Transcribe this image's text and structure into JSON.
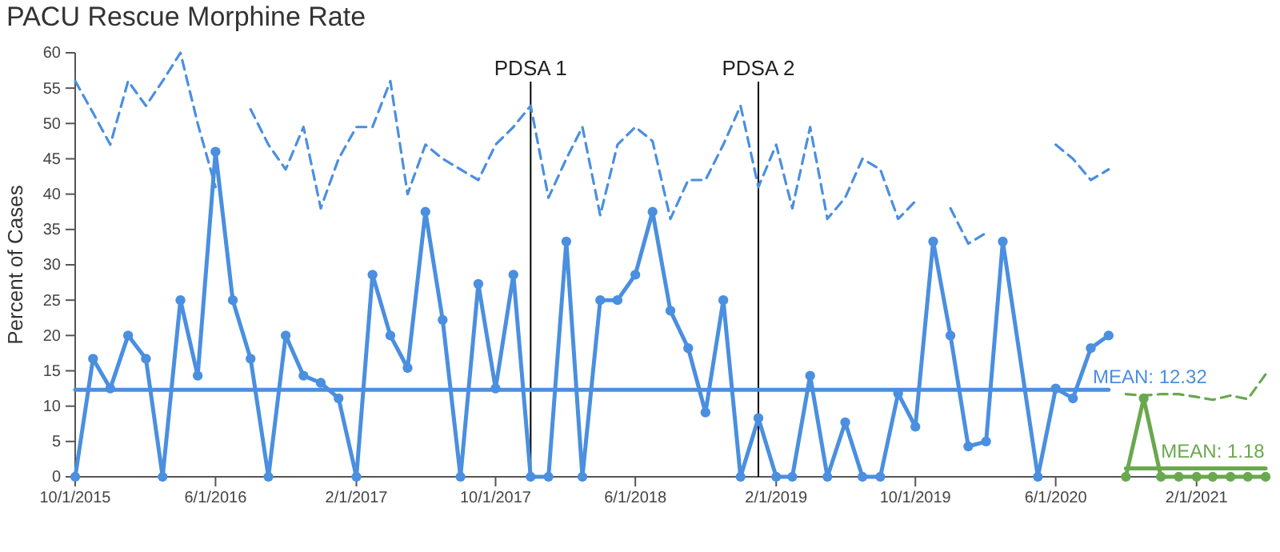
{
  "chart_data": {
    "type": "line",
    "title": "PACU Rescue Morphine Rate",
    "ylabel": "Percent of Cases",
    "xlim": [
      "2015-10-01",
      "2021-06-01"
    ],
    "xticks": [
      {
        "value": "2015-10-01",
        "label": "10/1/2015"
      },
      {
        "value": "2016-06-01",
        "label": "6/1/2016"
      },
      {
        "value": "2017-02-01",
        "label": "2/1/2017"
      },
      {
        "value": "2017-10-01",
        "label": "10/1/2017"
      },
      {
        "value": "2018-06-01",
        "label": "6/1/2018"
      },
      {
        "value": "2019-02-01",
        "label": "2/1/2019"
      },
      {
        "value": "2019-10-01",
        "label": "10/1/2019"
      },
      {
        "value": "2020-06-01",
        "label": "6/1/2020"
      },
      {
        "value": "2021-02-01",
        "label": "2/1/2021"
      }
    ],
    "ylim": [
      0,
      60
    ],
    "yticks": [
      0,
      5,
      10,
      15,
      20,
      25,
      30,
      35,
      40,
      45,
      50,
      55,
      60
    ],
    "grid": false,
    "ref_lines": [
      {
        "axis": "x",
        "value": "2017-12-01",
        "label": "PDSA 1",
        "color": "#000000"
      },
      {
        "axis": "x",
        "value": "2019-01-01",
        "label": "PDSA 2",
        "color": "#000000"
      }
    ],
    "series": [
      {
        "type": "line",
        "color": "#4a8fe0",
        "marker": "none",
        "line_style": "dashed",
        "x": [
          "2015-10",
          "2015-11",
          "2015-12",
          "2016-01",
          "2016-02",
          "2016-03",
          "2016-04",
          "2016-05",
          "2016-06",
          "2016-07",
          "2016-08",
          "2016-09",
          "2016-10",
          "2016-11",
          "2016-12",
          "2017-01",
          "2017-02",
          "2017-03",
          "2017-04",
          "2017-05",
          "2017-06",
          "2017-07",
          "2017-08",
          "2017-09",
          "2017-10",
          "2017-11",
          "2017-12",
          "2018-01",
          "2018-02",
          "2018-03",
          "2018-04",
          "2018-05",
          "2018-06",
          "2018-07",
          "2018-08",
          "2018-09",
          "2018-10",
          "2018-11",
          "2018-12",
          "2019-01",
          "2019-02",
          "2019-03",
          "2019-04",
          "2019-05",
          "2019-06",
          "2019-07",
          "2019-08",
          "2019-09",
          "2019-10",
          "2019-11",
          "2019-12",
          "2020-01",
          "2020-02",
          "2020-03",
          "2020-05",
          "2020-06",
          "2020-07",
          "2020-08",
          "2020-09"
        ],
        "values": [
          56,
          51.5,
          47,
          56,
          52.5,
          56,
          60,
          50,
          41,
          null,
          52,
          47,
          43.5,
          49.5,
          38,
          45,
          49.5,
          49.5,
          56,
          40,
          47,
          45,
          43.5,
          42,
          47,
          49.5,
          52.5,
          39.5,
          45,
          49.5,
          37,
          47,
          49.5,
          47.5,
          36.5,
          42,
          42,
          47,
          52.5,
          41,
          47,
          38,
          49.5,
          36.5,
          39.5,
          45,
          43.5,
          36.5,
          39,
          null,
          38,
          33,
          34.5,
          null,
          null,
          47,
          45,
          42,
          43.5
        ]
      },
      {
        "color": "#4a8fe0",
        "marker": "circle",
        "line_style": "solid",
        "x": [
          "2015-10",
          "2015-11",
          "2015-12",
          "2016-01",
          "2016-02",
          "2016-03",
          "2016-04",
          "2016-05",
          "2016-06",
          "2016-07",
          "2016-08",
          "2016-09",
          "2016-10",
          "2016-11",
          "2016-12",
          "2017-01",
          "2017-02",
          "2017-03",
          "2017-04",
          "2017-05",
          "2017-06",
          "2017-07",
          "2017-08",
          "2017-09",
          "2017-10",
          "2017-11",
          "2017-12",
          "2018-01",
          "2018-02",
          "2018-03",
          "2018-04",
          "2018-05",
          "2018-06",
          "2018-07",
          "2018-08",
          "2018-09",
          "2018-10",
          "2018-11",
          "2018-12",
          "2019-01",
          "2019-02",
          "2019-03",
          "2019-04",
          "2019-05",
          "2019-06",
          "2019-07",
          "2019-08",
          "2019-09",
          "2019-10",
          "2019-11",
          "2019-12",
          "2020-01",
          "2020-02",
          "2020-03",
          "2020-05",
          "2020-06",
          "2020-07",
          "2020-08",
          "2020-09"
        ],
        "values": [
          0,
          16.7,
          12.5,
          20,
          16.7,
          0,
          25,
          14.3,
          46,
          25,
          16.7,
          0,
          20,
          14.3,
          13.3,
          11.1,
          0,
          28.6,
          20,
          15.4,
          37.5,
          22.2,
          0,
          27.3,
          12.5,
          28.6,
          0,
          0,
          33.3,
          0,
          25,
          25,
          28.6,
          37.5,
          23.5,
          18.2,
          9.1,
          25,
          0,
          8.3,
          0,
          0,
          14.3,
          0,
          7.7,
          0,
          0,
          11.8,
          7.1,
          33.3,
          20,
          4.3,
          5,
          33.3,
          0,
          12.5,
          11.1,
          18.2,
          20
        ]
      },
      {
        "name": "MEAN: 12.32",
        "color": "#4a8fe0",
        "marker": "none",
        "line_style": "solid",
        "x": [
          "2015-10",
          "2020-09"
        ],
        "values": [
          12.32,
          12.32
        ]
      },
      {
        "color": "#6aa84f",
        "marker": "none",
        "line_style": "dashed",
        "x": [
          "2020-10",
          "2020-11",
          "2020-12",
          "2021-01",
          "2021-02",
          "2021-03",
          "2021-04",
          "2021-05",
          "2021-06"
        ],
        "values": [
          11.7,
          11.5,
          11.7,
          11.7,
          11.3,
          10.9,
          11.5,
          11,
          14.5
        ]
      },
      {
        "color": "#6aa84f",
        "marker": "circle",
        "line_style": "solid",
        "x": [
          "2020-10",
          "2020-11",
          "2020-12",
          "2021-01",
          "2021-02",
          "2021-03",
          "2021-04",
          "2021-05",
          "2021-06"
        ],
        "values": [
          0,
          11.1,
          0,
          0,
          0,
          0,
          0,
          0,
          0
        ]
      },
      {
        "name": "MEAN: 1.18",
        "color": "#6aa84f",
        "marker": "none",
        "line_style": "solid",
        "x": [
          "2020-10",
          "2021-06"
        ],
        "values": [
          1.18,
          1.18
        ]
      }
    ]
  }
}
